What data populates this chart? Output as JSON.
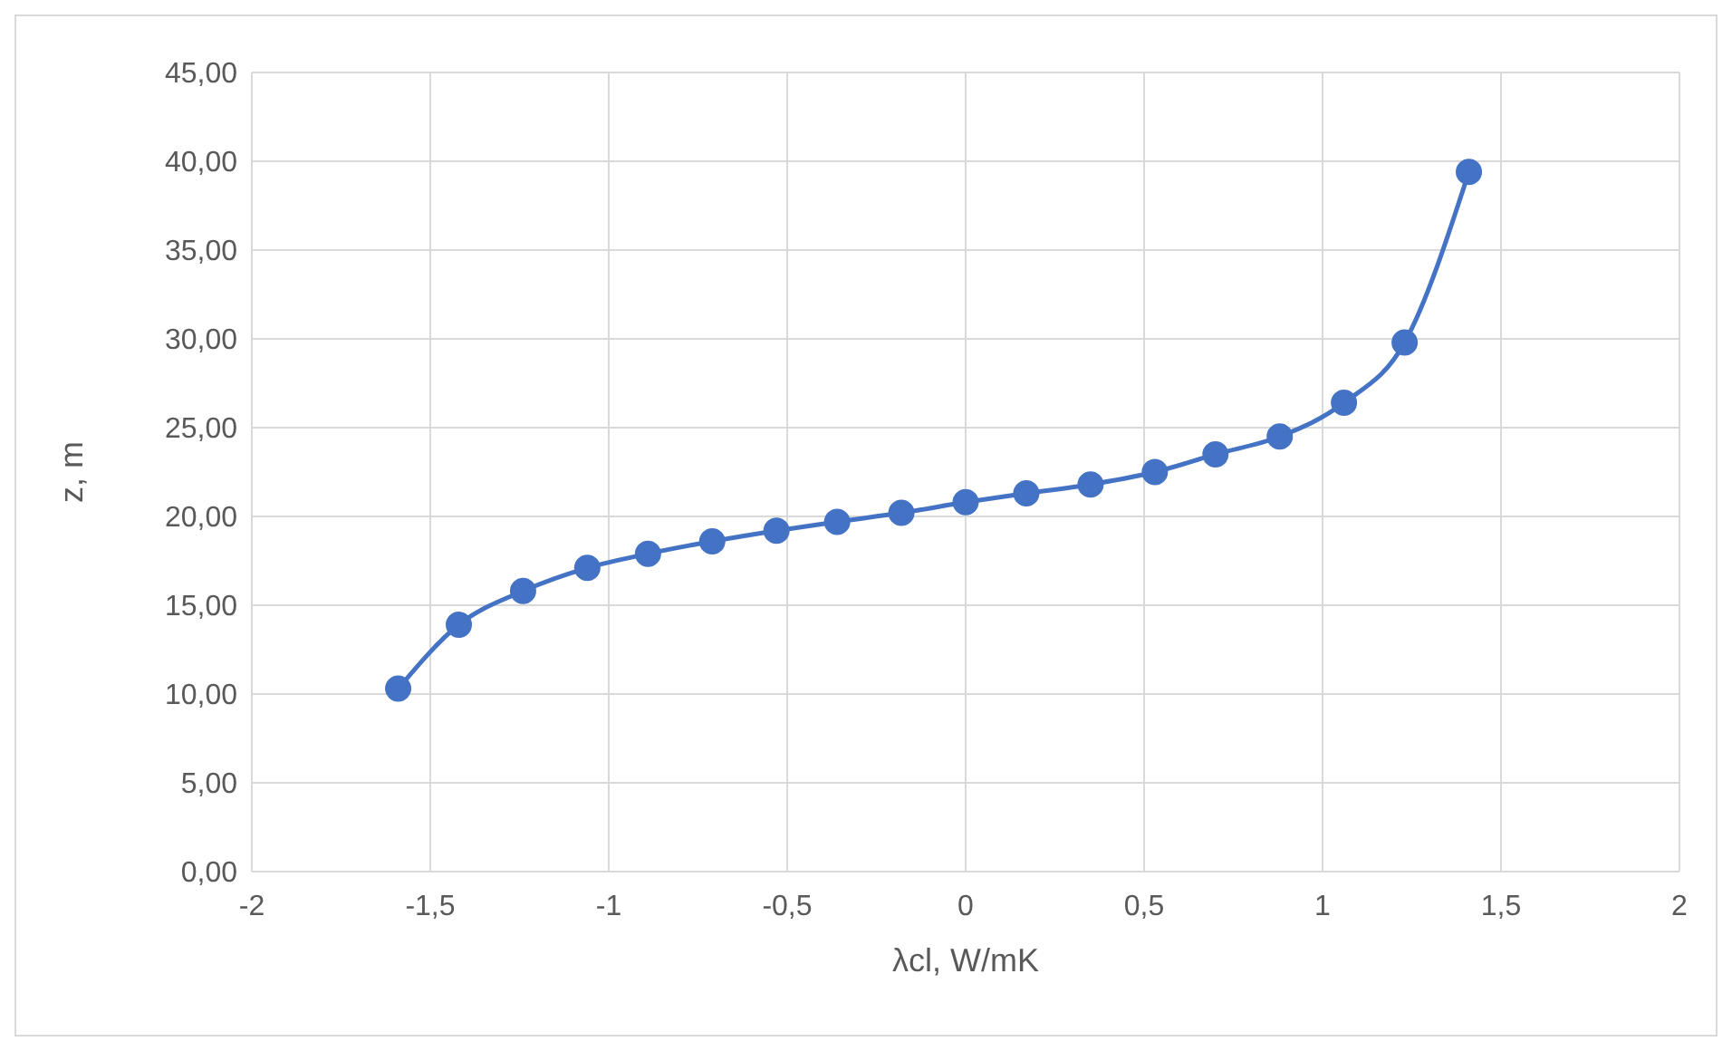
{
  "chart_data": {
    "type": "line",
    "xlabel": "λcl, W/mK",
    "ylabel": "z, m",
    "x": [
      -1.59,
      -1.42,
      -1.24,
      -1.06,
      -0.89,
      -0.71,
      -0.53,
      -0.36,
      -0.18,
      0,
      0.17,
      0.35,
      0.53,
      0.7,
      0.88,
      1.06,
      1.23,
      1.41
    ],
    "series": [
      {
        "color": "#4472c4",
        "values": [
          10.3,
          13.9,
          15.8,
          17.1,
          17.9,
          18.6,
          19.2,
          19.7,
          20.2,
          20.8,
          21.3,
          21.8,
          22.5,
          23.5,
          24.5,
          26.4,
          29.8,
          39.4
        ]
      }
    ],
    "xlim": [
      -2,
      2
    ],
    "xticks": [
      -2,
      {
        "value": -1.5,
        "label": "-1,5"
      },
      -1,
      {
        "value": -0.5,
        "label": "-0,5"
      },
      0,
      {
        "value": 0.5,
        "label": "0,5"
      },
      1,
      {
        "value": 1.5,
        "label": "1,5"
      },
      2
    ],
    "ylim": [
      0,
      45
    ],
    "yticks": [
      {
        "value": 0,
        "label": "0,00"
      },
      {
        "value": 5,
        "label": "5,00"
      },
      {
        "value": 10,
        "label": "10,00"
      },
      {
        "value": 15,
        "label": "15,00"
      },
      {
        "value": 20,
        "label": "20,00"
      },
      {
        "value": 25,
        "label": "25,00"
      },
      {
        "value": 30,
        "label": "30,00"
      },
      {
        "value": 35,
        "label": "35,00"
      },
      {
        "value": 40,
        "label": "40,00"
      },
      {
        "value": 45,
        "label": "45,00"
      }
    ],
    "grid": true,
    "marker": "circle",
    "line_style": "solid",
    "legend": false
  }
}
